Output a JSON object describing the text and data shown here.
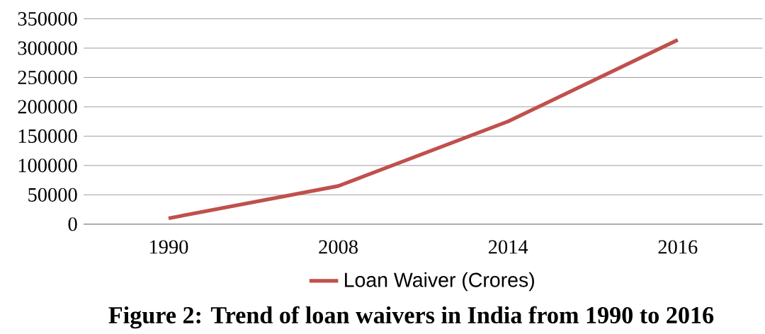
{
  "chart_data": {
    "type": "line",
    "categories": [
      "1990",
      "2008",
      "2014",
      "2016"
    ],
    "series": [
      {
        "name": "Loan Waiver  (Crores)",
        "color": "#c0504d",
        "values": [
          10000,
          65000,
          175000,
          314000
        ]
      }
    ],
    "ylim": [
      0,
      350000
    ],
    "yticks": [
      0,
      50000,
      100000,
      150000,
      200000,
      250000,
      300000,
      350000
    ],
    "grid": "y",
    "legend": "bottom",
    "marker": "none",
    "line_style": "solid",
    "annotations": [
      "**Figure 2: Trend of loan waivers in India from 1990 to 2016**"
    ]
  }
}
